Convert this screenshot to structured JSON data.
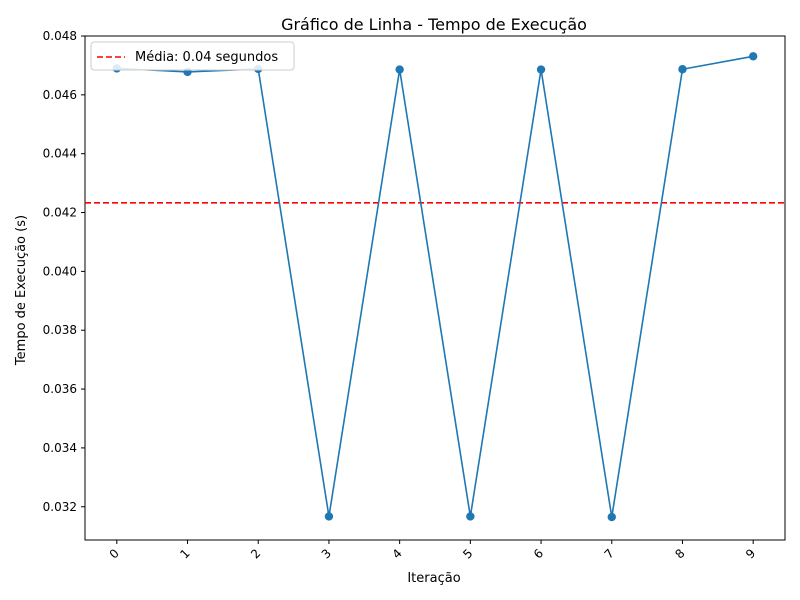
{
  "chart_data": {
    "type": "line",
    "title": "Gráfico de Linha - Tempo de Execução",
    "xlabel": "Iteração",
    "ylabel": "Tempo de Execução (s)",
    "x": [
      0,
      1,
      2,
      3,
      4,
      5,
      6,
      7,
      8,
      9
    ],
    "x_tick_labels": [
      "0",
      "1",
      "2",
      "3",
      "4",
      "5",
      "6",
      "7",
      "8",
      "9"
    ],
    "x_tick_rotation": 45,
    "xlim": [
      -0.45,
      9.45
    ],
    "ylim": [
      0.03087,
      0.048
    ],
    "y_ticks": [
      0.032,
      0.034,
      0.036,
      0.038,
      0.04,
      0.042,
      0.044,
      0.046,
      0.048
    ],
    "y_tick_labels": [
      "0.032",
      "0.034",
      "0.036",
      "0.038",
      "0.040",
      "0.042",
      "0.044",
      "0.046",
      "0.048"
    ],
    "grid": false,
    "series": [
      {
        "values": [
          0.0469,
          0.04678,
          0.04688,
          0.03167,
          0.04686,
          0.03167,
          0.04686,
          0.03165,
          0.04687,
          0.04731
        ],
        "color": "#1f77b4",
        "marker": "circle"
      }
    ],
    "reference_line": {
      "value": 0.04233,
      "color": "#ff0000",
      "style": "dashed",
      "label": "Média: 0.04 segundos"
    },
    "legend": {
      "position": "top-left",
      "entries": [
        "Média: 0.04 segundos"
      ]
    }
  }
}
